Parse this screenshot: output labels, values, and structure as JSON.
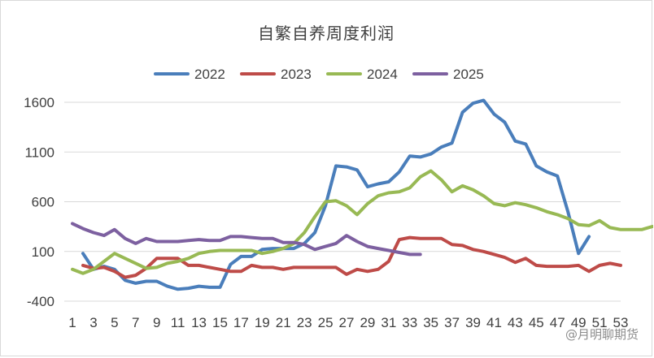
{
  "chart_data": {
    "type": "line",
    "title": "自繁自养周度利润",
    "xlabel": "",
    "ylabel": "",
    "ylim": [
      -400,
      1600
    ],
    "y_ticks": [
      1600,
      1100,
      600,
      100,
      -400
    ],
    "xlim": [
      1,
      53
    ],
    "x_ticks": [
      1,
      3,
      5,
      7,
      9,
      11,
      13,
      15,
      17,
      19,
      21,
      23,
      25,
      27,
      29,
      31,
      33,
      35,
      37,
      39,
      41,
      43,
      45,
      47,
      49,
      51,
      53
    ],
    "grid": true,
    "legend": "top",
    "series": [
      {
        "name": "2022",
        "color": "#4a7ebb",
        "start_week": 2,
        "values": [
          80,
          -80,
          -50,
          -80,
          -190,
          -220,
          -200,
          -200,
          -250,
          -280,
          -270,
          -250,
          -260,
          -260,
          -30,
          50,
          50,
          120,
          130,
          130,
          130,
          180,
          290,
          560,
          960,
          950,
          920,
          750,
          780,
          800,
          900,
          1060,
          1050,
          1080,
          1150,
          1190,
          1500,
          1590,
          1620,
          1480,
          1400,
          1210,
          1180,
          960,
          900,
          860,
          500,
          80,
          250
        ]
      },
      {
        "name": "2023",
        "color": "#be4b48",
        "start_week": 2,
        "values": [
          -40,
          -70,
          -60,
          -100,
          -160,
          -140,
          -70,
          30,
          30,
          30,
          -40,
          -40,
          -60,
          -80,
          -100,
          -100,
          -40,
          -60,
          -60,
          -80,
          -60,
          -60,
          -60,
          -60,
          -60,
          -130,
          -80,
          -100,
          -80,
          0,
          220,
          240,
          230,
          230,
          230,
          170,
          160,
          120,
          100,
          70,
          40,
          -10,
          30,
          -40,
          -50,
          -50,
          -50,
          -40,
          -100,
          -40,
          -20,
          -40
        ]
      },
      {
        "name": "2024",
        "color": "#98b954",
        "start_week": 1,
        "values": [
          -80,
          -120,
          -80,
          0,
          80,
          30,
          -20,
          -70,
          -60,
          -20,
          0,
          30,
          80,
          100,
          110,
          110,
          110,
          110,
          80,
          100,
          130,
          180,
          290,
          450,
          600,
          610,
          560,
          470,
          580,
          660,
          690,
          700,
          740,
          850,
          910,
          820,
          700,
          760,
          720,
          660,
          580,
          560,
          590,
          570,
          540,
          500,
          470,
          430,
          370,
          360,
          410,
          340,
          320,
          320,
          320,
          350
        ]
      },
      {
        "name": "2025",
        "color": "#7d60a0",
        "start_week": 1,
        "values": [
          380,
          330,
          290,
          260,
          320,
          230,
          180,
          230,
          200,
          200,
          200,
          210,
          220,
          210,
          210,
          250,
          250,
          240,
          230,
          230,
          190,
          190,
          170,
          120,
          150,
          180,
          260,
          200,
          150,
          130,
          110,
          90,
          70,
          70
        ]
      }
    ]
  },
  "watermark": "@月明聊期货"
}
